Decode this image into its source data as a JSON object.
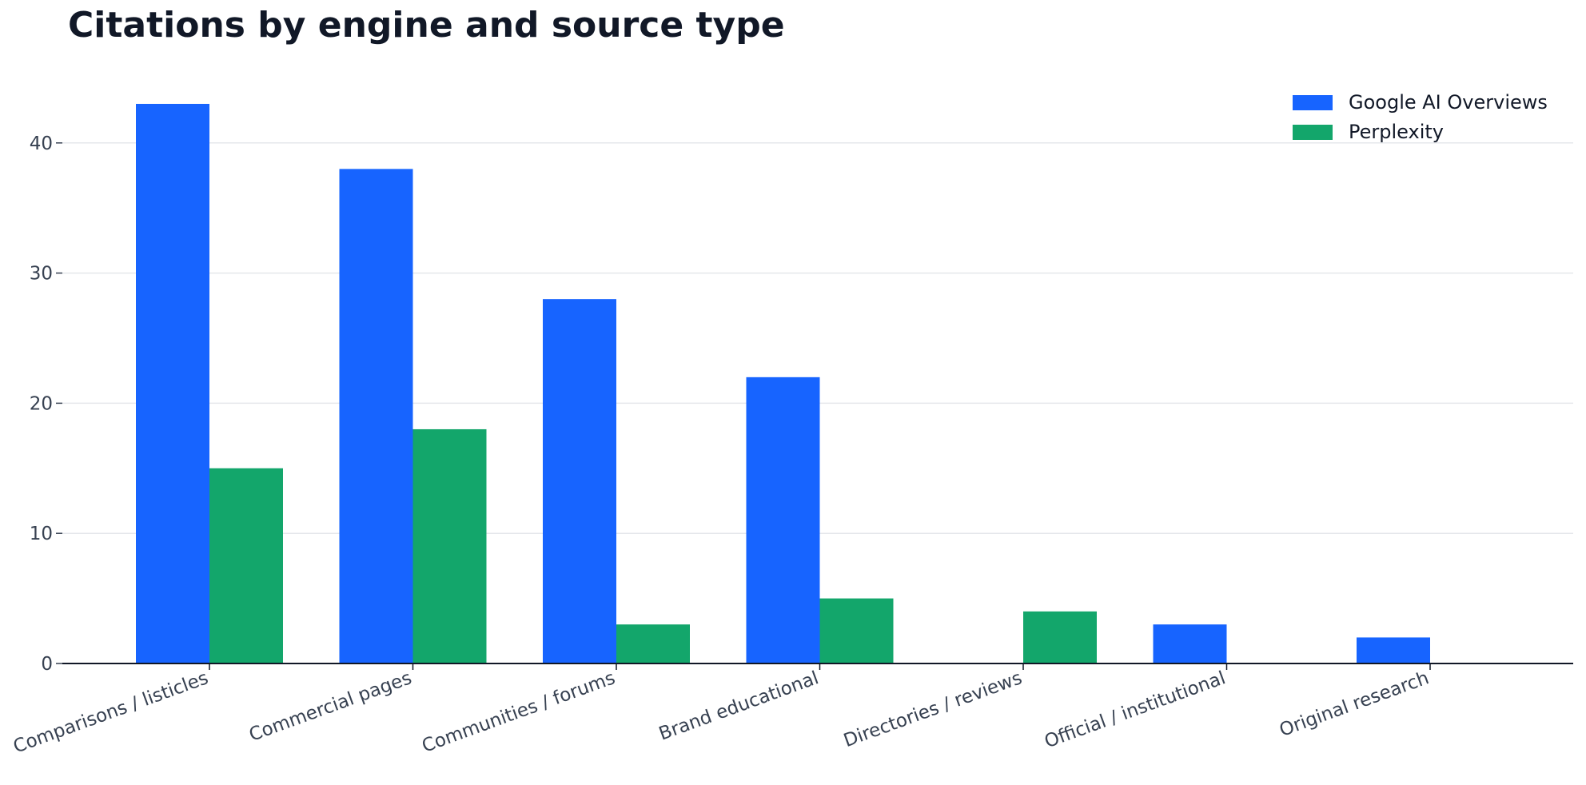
{
  "chart_data": {
    "type": "bar",
    "title": "Citations by engine and source type",
    "xlabel": "",
    "ylabel": "",
    "categories": [
      "Comparisons / listicles",
      "Commercial pages",
      "Communities / forums",
      "Brand educational",
      "Directories / reviews",
      "Official / institutional",
      "Original research"
    ],
    "series": [
      {
        "name": "Google AI Overviews",
        "color": "#1764ff",
        "values": [
          43,
          38,
          28,
          22,
          0,
          3,
          2
        ]
      },
      {
        "name": "Perplexity",
        "color": "#13a66b",
        "values": [
          15,
          18,
          3,
          5,
          4,
          0,
          0
        ]
      }
    ],
    "ylim": [
      0,
      45
    ],
    "yticks": [
      0,
      10,
      20,
      30,
      40
    ],
    "grid": true,
    "legend_position": "top-right"
  }
}
